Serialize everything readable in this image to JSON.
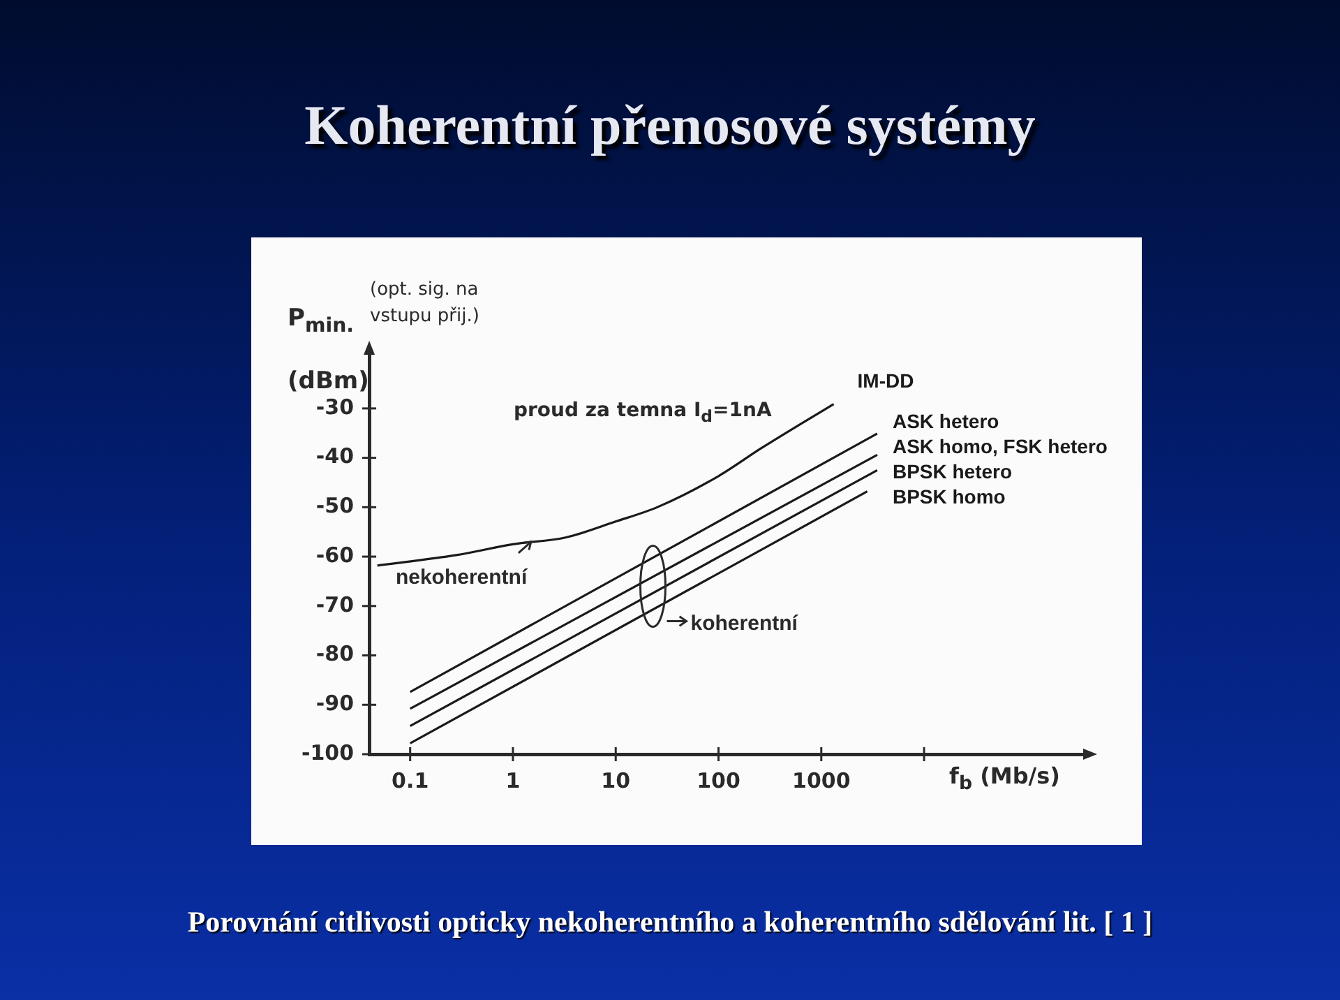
{
  "chart_data": {
    "type": "line",
    "title": "Koherentní přenosové systémy",
    "xlabel": "f$_{b}$ (Mb/s)",
    "ylabel": "P$_{min.}$ (dBm)",
    "log": "x",
    "xlim": [
      0.04,
      400000
    ],
    "xticks": [
      0.1,
      1,
      10,
      100,
      1000,
      {
        "value": 10000,
        "label": null
      }
    ],
    "ylim": [
      -100,
      -18
    ],
    "yticks": [
      -100,
      -90,
      -80,
      -70,
      -60,
      -50,
      -40,
      -30
    ],
    "grid": false,
    "legend": false,
    "marker": "none",
    "line_style": "solid",
    "series": [
      {
        "name": "IM-DD",
        "color": "#1a1a1a",
        "x": [
          0.048,
          0.28,
          1,
          3.3,
          10,
          26,
          100,
          263,
          1320
        ],
        "values": [
          -61.8,
          -59.7,
          -57.5,
          -56.1,
          -52.9,
          -49.9,
          -43.7,
          -38,
          -29.1
        ]
      },
      {
        "name": "ASK hetero",
        "color": "#1a1a1a",
        "x": [
          0.1,
          3500
        ],
        "values": [
          -87.4,
          -35.1
        ]
      },
      {
        "name": "ASK homo, FSK hetero",
        "color": "#1a1a1a",
        "x": [
          0.1,
          3500
        ],
        "values": [
          -90.8,
          -39.4
        ]
      },
      {
        "name": "BPSK hetero",
        "color": "#1a1a1a",
        "x": [
          0.1,
          3500
        ],
        "values": [
          -94.3,
          -42.5
        ]
      },
      {
        "name": "BPSK homo",
        "color": "#1a1a1a",
        "x": [
          0.1,
          2800
        ],
        "values": [
          -97.8,
          -46.8
        ]
      }
    ],
    "annotations": [
      "proud za temna I$_{d}$=1nA",
      "(opt. sig. na vstupu přij.)",
      {
        "text": "nekoherentní",
        "x": 1.5,
        "y": -57
      },
      {
        "text": "koherentní",
        "x": 23,
        "y": -66
      },
      "Porovnání citlivosti opticky nekoherentního a koherentního sdělování lit. [ 1 ]"
    ]
  }
}
